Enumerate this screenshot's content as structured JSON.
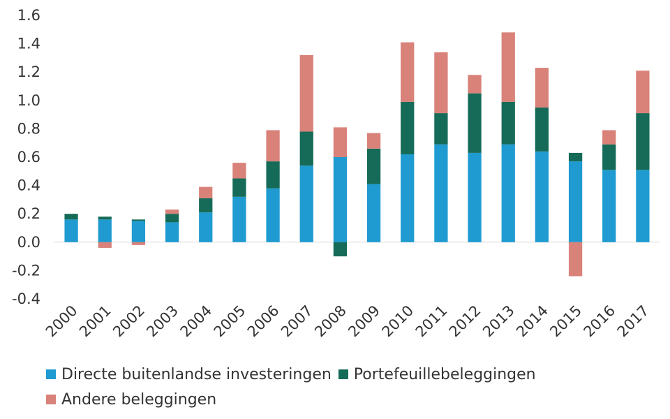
{
  "chart_data": {
    "type": "bar",
    "stacked": true,
    "categories": [
      "2000",
      "2001",
      "2002",
      "2003",
      "2004",
      "2005",
      "2006",
      "2007",
      "2008",
      "2009",
      "2010",
      "2011",
      "2012",
      "2013",
      "2014",
      "2015",
      "2016",
      "2017"
    ],
    "series": [
      {
        "name": "Directe buitenlandse investeringen",
        "color": "#1f9bd1",
        "values": [
          0.16,
          0.16,
          0.15,
          0.14,
          0.21,
          0.32,
          0.38,
          0.54,
          0.6,
          0.41,
          0.62,
          0.69,
          0.63,
          0.69,
          0.64,
          0.57,
          0.51,
          0.51
        ]
      },
      {
        "name": "Portefeuillebeleggingen",
        "color": "#156b57",
        "values": [
          0.04,
          0.02,
          0.01,
          0.06,
          0.1,
          0.13,
          0.19,
          0.24,
          -0.1,
          0.25,
          0.37,
          0.22,
          0.42,
          0.3,
          0.31,
          0.06,
          0.18,
          0.4
        ]
      },
      {
        "name": "Andere beleggingen",
        "color": "#d9827a",
        "values": [
          0.0,
          -0.04,
          -0.02,
          0.03,
          0.08,
          0.11,
          0.22,
          0.54,
          0.21,
          0.11,
          0.42,
          0.43,
          0.13,
          0.49,
          0.28,
          -0.24,
          0.1,
          0.3
        ]
      }
    ],
    "yticks": [
      "1.6",
      "1.4",
      "1.2",
      "1.0",
      "0.8",
      "0.6",
      "0.4",
      "0.2",
      "0.0",
      "-0.2",
      "-0.4"
    ],
    "ylim": [
      -0.4,
      1.6
    ],
    "title": "",
    "xlabel": "",
    "ylabel": "",
    "grid": false,
    "legend_position": "bottom"
  },
  "legend": {
    "row1": [
      {
        "label": "Directe buitenlandse investeringen",
        "color": "#1f9bd1"
      },
      {
        "label": "Portefeuillebeleggingen",
        "color": "#156b57"
      }
    ],
    "row2": [
      {
        "label": "Andere beleggingen",
        "color": "#d9827a"
      }
    ]
  }
}
